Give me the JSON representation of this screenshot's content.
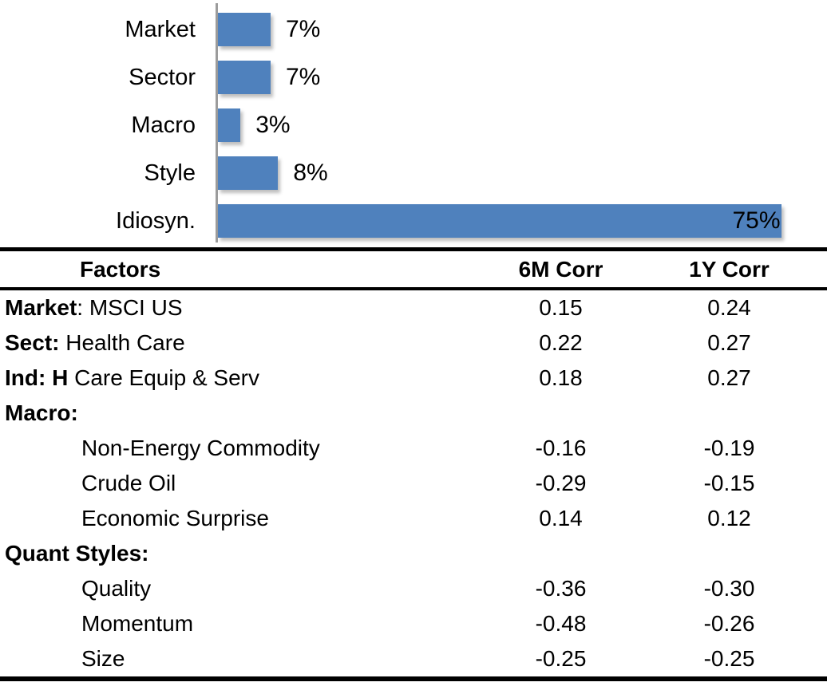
{
  "chart_data": {
    "type": "bar",
    "orientation": "horizontal",
    "title": "",
    "categories": [
      "Market",
      "Sector",
      "Macro",
      "Style",
      "Idiosyn."
    ],
    "values": [
      7,
      7,
      3,
      8,
      75
    ],
    "data_labels": [
      "7%",
      "7%",
      "3%",
      "8%",
      "75%"
    ],
    "xlim": [
      0,
      81
    ],
    "bar_color": "#4f81bd",
    "axis_line_color": "#9c9c9c",
    "grid": false,
    "legend": false
  },
  "table": {
    "columns": [
      "Factors",
      "6M Corr",
      "1Y Corr"
    ],
    "rows": [
      {
        "label_bold": "Market",
        "label_rest": ": MSCI US",
        "indent": false,
        "corr_6m": "0.15",
        "corr_1y": "0.24"
      },
      {
        "label_bold": "Sect:",
        "label_rest": " Health Care",
        "indent": false,
        "corr_6m": "0.22",
        "corr_1y": "0.27"
      },
      {
        "label_bold": "Ind: H",
        "label_rest": " Care Equip & Serv",
        "indent": false,
        "corr_6m": "0.18",
        "corr_1y": "0.27"
      },
      {
        "label_bold": "Macro:",
        "label_rest": "",
        "indent": false,
        "corr_6m": "",
        "corr_1y": ""
      },
      {
        "label_bold": "",
        "label_rest": "Non-Energy Commodity",
        "indent": true,
        "corr_6m": "-0.16",
        "corr_1y": "-0.19"
      },
      {
        "label_bold": "",
        "label_rest": "Crude Oil",
        "indent": true,
        "corr_6m": "-0.29",
        "corr_1y": "-0.15"
      },
      {
        "label_bold": "",
        "label_rest": "Economic Surprise",
        "indent": true,
        "corr_6m": "0.14",
        "corr_1y": "0.12"
      },
      {
        "label_bold": "Quant Styles:",
        "label_rest": "",
        "indent": false,
        "corr_6m": "",
        "corr_1y": ""
      },
      {
        "label_bold": "",
        "label_rest": "Quality",
        "indent": true,
        "corr_6m": "-0.36",
        "corr_1y": "-0.30"
      },
      {
        "label_bold": "",
        "label_rest": "Momentum",
        "indent": true,
        "corr_6m": "-0.48",
        "corr_1y": "-0.26"
      },
      {
        "label_bold": "",
        "label_rest": "Size",
        "indent": true,
        "corr_6m": "-0.25",
        "corr_1y": "-0.25"
      }
    ]
  }
}
